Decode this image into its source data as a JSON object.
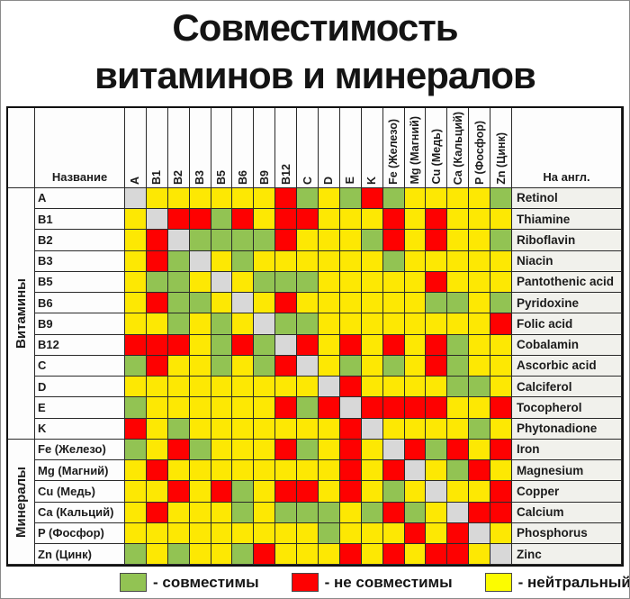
{
  "title": {
    "line1": "Совместимость",
    "line2": "витаминов и минералов"
  },
  "table": {
    "name_header": "Название",
    "eng_header": "На англ.",
    "group_vitamins": "Витамины",
    "group_minerals": "Минералы",
    "columns": [
      "A",
      "B1",
      "B2",
      "B3",
      "B5",
      "B6",
      "B9",
      "B12",
      "C",
      "D",
      "E",
      "K",
      "Fe (Железо)",
      "Mg (Магний)",
      "Cu (Медь)",
      "Ca (Кальций)",
      "P (Фосфор)",
      "Zn (Цинк)"
    ],
    "rows": [
      {
        "label": "A",
        "eng": "Retinol"
      },
      {
        "label": "B1",
        "eng": "Thiamine"
      },
      {
        "label": "B2",
        "eng": "Riboflavin"
      },
      {
        "label": "B3",
        "eng": "Niacin"
      },
      {
        "label": "B5",
        "eng": "Pantothenic acid"
      },
      {
        "label": "B6",
        "eng": "Pyridoxine"
      },
      {
        "label": "B9",
        "eng": "Folic acid"
      },
      {
        "label": "B12",
        "eng": "Cobalamin"
      },
      {
        "label": "C",
        "eng": "Ascorbic acid"
      },
      {
        "label": "D",
        "eng": "Calciferol"
      },
      {
        "label": "E",
        "eng": "Tocopherol"
      },
      {
        "label": "K",
        "eng": "Phytonadione"
      },
      {
        "label": "Fe (Железо)",
        "eng": "Iron"
      },
      {
        "label": "Mg (Магний)",
        "eng": "Magnesium"
      },
      {
        "label": "Cu (Медь)",
        "eng": "Copper"
      },
      {
        "label": "Ca (Кальций)",
        "eng": "Calcium"
      },
      {
        "label": "P (Фосфор)",
        "eng": "Phosphorus"
      },
      {
        "label": "Zn (Цинк)",
        "eng": "Zinc"
      }
    ]
  },
  "cell_colors": {
    "G": "#92c353",
    "R": "#fe0101",
    "Y": "#fde803",
    "S": "#d8d8d8"
  },
  "legend": {
    "items": [
      {
        "label": "- совместимы",
        "color": "#92c353"
      },
      {
        "label": "- не совместимы",
        "color": "#fe0101"
      },
      {
        "label": "- нейтральный",
        "color": "#fcfc00"
      }
    ]
  },
  "chart_data": {
    "type": "heatmap",
    "title": "Совместимость витаминов и минералов",
    "x_categories": [
      "A",
      "B1",
      "B2",
      "B3",
      "B5",
      "B6",
      "B9",
      "B12",
      "C",
      "D",
      "E",
      "K",
      "Fe (Железо)",
      "Mg (Магний)",
      "Cu (Медь)",
      "Ca (Кальций)",
      "P (Фосфор)",
      "Zn (Цинк)"
    ],
    "y_categories": [
      "A",
      "B1",
      "B2",
      "B3",
      "B5",
      "B6",
      "B9",
      "B12",
      "C",
      "D",
      "E",
      "K",
      "Fe (Железо)",
      "Mg (Магний)",
      "Cu (Медь)",
      "Ca (Кальций)",
      "P (Фосфор)",
      "Zn (Цинк)"
    ],
    "code_legend": {
      "G": "совместимы (compatible, green)",
      "R": "не совместимы (incompatible, red)",
      "Y": "нейтральный (neutral, yellow)",
      "S": "diagonal self cell (gray)"
    },
    "matrix": [
      [
        "S",
        "Y",
        "Y",
        "Y",
        "Y",
        "Y",
        "Y",
        "R",
        "G",
        "Y",
        "G",
        "R",
        "G",
        "Y",
        "Y",
        "Y",
        "Y",
        "G"
      ],
      [
        "Y",
        "S",
        "R",
        "R",
        "G",
        "R",
        "Y",
        "R",
        "R",
        "Y",
        "Y",
        "Y",
        "R",
        "Y",
        "R",
        "Y",
        "Y",
        "Y"
      ],
      [
        "Y",
        "R",
        "S",
        "G",
        "G",
        "G",
        "G",
        "R",
        "Y",
        "Y",
        "Y",
        "G",
        "R",
        "Y",
        "R",
        "Y",
        "Y",
        "G"
      ],
      [
        "Y",
        "R",
        "G",
        "S",
        "Y",
        "G",
        "Y",
        "Y",
        "Y",
        "Y",
        "Y",
        "Y",
        "G",
        "Y",
        "Y",
        "Y",
        "Y",
        "Y"
      ],
      [
        "Y",
        "G",
        "G",
        "Y",
        "S",
        "Y",
        "G",
        "G",
        "G",
        "Y",
        "Y",
        "Y",
        "Y",
        "Y",
        "R",
        "Y",
        "Y",
        "Y"
      ],
      [
        "Y",
        "R",
        "G",
        "G",
        "Y",
        "S",
        "Y",
        "R",
        "Y",
        "Y",
        "Y",
        "Y",
        "Y",
        "Y",
        "G",
        "G",
        "Y",
        "G"
      ],
      [
        "Y",
        "Y",
        "G",
        "Y",
        "G",
        "Y",
        "S",
        "G",
        "G",
        "Y",
        "Y",
        "Y",
        "Y",
        "Y",
        "Y",
        "Y",
        "Y",
        "R"
      ],
      [
        "R",
        "R",
        "R",
        "Y",
        "G",
        "R",
        "G",
        "S",
        "R",
        "Y",
        "R",
        "Y",
        "R",
        "Y",
        "R",
        "G",
        "Y",
        "Y"
      ],
      [
        "G",
        "R",
        "Y",
        "Y",
        "G",
        "Y",
        "G",
        "R",
        "S",
        "Y",
        "G",
        "Y",
        "G",
        "Y",
        "R",
        "G",
        "Y",
        "Y"
      ],
      [
        "Y",
        "Y",
        "Y",
        "Y",
        "Y",
        "Y",
        "Y",
        "Y",
        "Y",
        "S",
        "R",
        "Y",
        "Y",
        "Y",
        "Y",
        "G",
        "G",
        "Y"
      ],
      [
        "G",
        "Y",
        "Y",
        "Y",
        "Y",
        "Y",
        "Y",
        "R",
        "G",
        "R",
        "S",
        "R",
        "R",
        "R",
        "R",
        "Y",
        "Y",
        "R"
      ],
      [
        "R",
        "Y",
        "G",
        "Y",
        "Y",
        "Y",
        "Y",
        "Y",
        "Y",
        "Y",
        "R",
        "S",
        "Y",
        "Y",
        "Y",
        "Y",
        "G",
        "Y"
      ],
      [
        "G",
        "Y",
        "R",
        "G",
        "Y",
        "Y",
        "Y",
        "R",
        "G",
        "Y",
        "R",
        "Y",
        "S",
        "R",
        "G",
        "R",
        "Y",
        "R"
      ],
      [
        "Y",
        "R",
        "Y",
        "Y",
        "Y",
        "Y",
        "Y",
        "Y",
        "Y",
        "Y",
        "R",
        "Y",
        "R",
        "S",
        "Y",
        "G",
        "R",
        "Y"
      ],
      [
        "Y",
        "Y",
        "R",
        "Y",
        "R",
        "G",
        "Y",
        "R",
        "R",
        "Y",
        "R",
        "Y",
        "G",
        "Y",
        "S",
        "Y",
        "Y",
        "R"
      ],
      [
        "Y",
        "R",
        "Y",
        "Y",
        "Y",
        "G",
        "Y",
        "G",
        "G",
        "G",
        "Y",
        "G",
        "R",
        "G",
        "Y",
        "S",
        "R",
        "R"
      ],
      [
        "Y",
        "Y",
        "Y",
        "Y",
        "Y",
        "Y",
        "Y",
        "Y",
        "Y",
        "G",
        "Y",
        "Y",
        "Y",
        "R",
        "Y",
        "R",
        "S",
        "Y"
      ],
      [
        "G",
        "Y",
        "G",
        "Y",
        "Y",
        "G",
        "R",
        "Y",
        "Y",
        "Y",
        "R",
        "Y",
        "R",
        "Y",
        "R",
        "R",
        "Y",
        "S"
      ]
    ]
  }
}
